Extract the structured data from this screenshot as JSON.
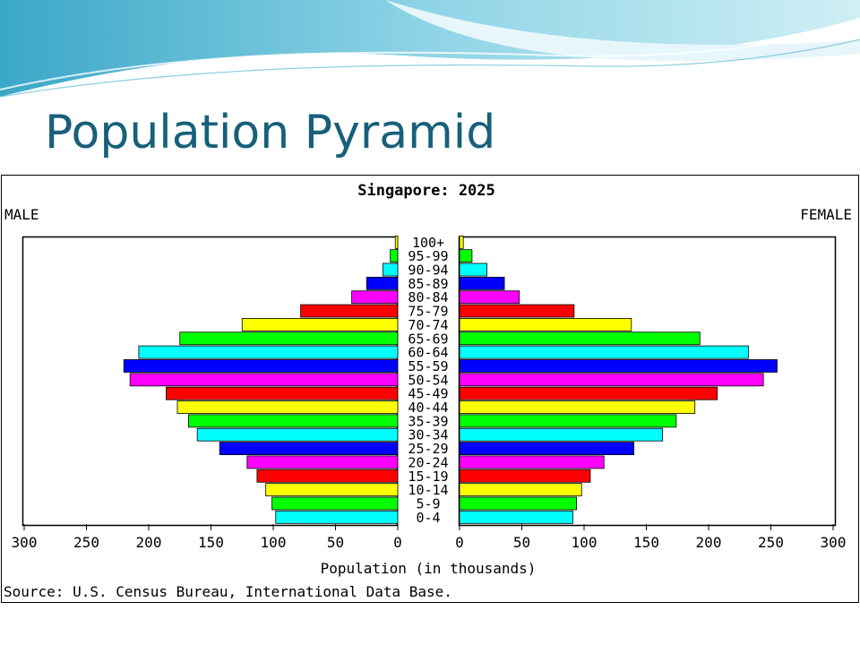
{
  "slide": {
    "title": "Population Pyramid"
  },
  "colors": {
    "title": "#17607a",
    "band_cycle": [
      "#00ffff",
      "#00ff00",
      "#ffff00",
      "#ff0000",
      "#ff00ff",
      "#0000ff"
    ]
  },
  "chart_data": {
    "type": "bar",
    "subtype": "population-pyramid",
    "title": "Singapore: 2025",
    "left_label": "MALE",
    "right_label": "FEMALE",
    "xlabel": "Population (in thousands)",
    "source": "Source: U.S. Census Bureau, International Data Base.",
    "xlim": [
      0,
      300
    ],
    "xticks": [
      0,
      50,
      100,
      150,
      200,
      250,
      300
    ],
    "categories": [
      "0-4",
      "5-9",
      "10-14",
      "15-19",
      "20-24",
      "25-29",
      "30-34",
      "35-39",
      "40-44",
      "45-49",
      "50-54",
      "55-59",
      "60-64",
      "65-69",
      "70-74",
      "75-79",
      "80-84",
      "85-89",
      "90-94",
      "95-99",
      "100+"
    ],
    "series": [
      {
        "name": "MALE",
        "values": [
          98,
          101,
          106,
          113,
          121,
          143,
          161,
          168,
          177,
          186,
          215,
          220,
          208,
          175,
          125,
          78,
          37,
          25,
          12,
          6,
          2
        ]
      },
      {
        "name": "FEMALE",
        "values": [
          91,
          94,
          98,
          105,
          116,
          140,
          163,
          174,
          189,
          207,
          244,
          255,
          232,
          193,
          138,
          92,
          48,
          36,
          22,
          10,
          3
        ]
      }
    ]
  }
}
